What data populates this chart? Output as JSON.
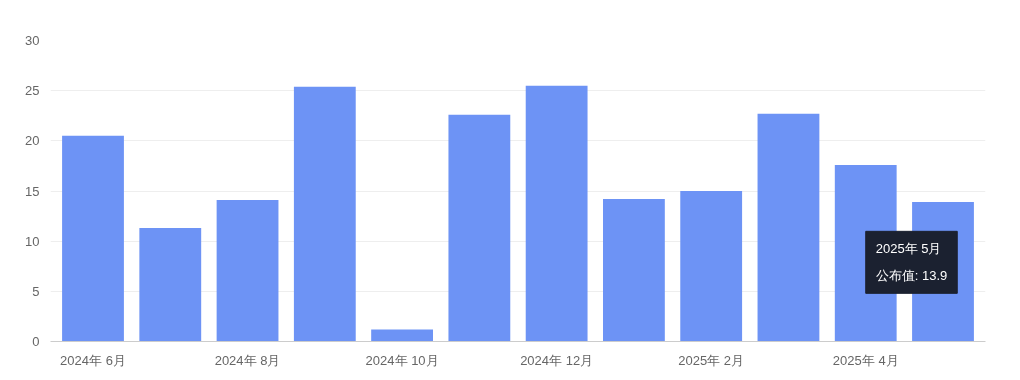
{
  "chart_data": {
    "type": "bar",
    "categories": [
      "2024年 6月",
      null,
      "2024年 8月",
      null,
      "2024年 10月",
      null,
      "2024年 12月",
      null,
      "2025年 2月",
      null,
      "2025年 4月",
      null
    ],
    "values": [
      20.5,
      11.3,
      14.1,
      25.4,
      1.2,
      22.6,
      25.5,
      14.2,
      15.0,
      22.7,
      17.6,
      13.9
    ],
    "color": "#6d93f5",
    "ylim": [
      0,
      30
    ],
    "yticks": [
      0,
      5,
      10,
      15,
      20,
      25,
      30
    ],
    "grid": "y",
    "annotations": [
      "2025年 5月",
      "公布值: 13.9"
    ]
  }
}
